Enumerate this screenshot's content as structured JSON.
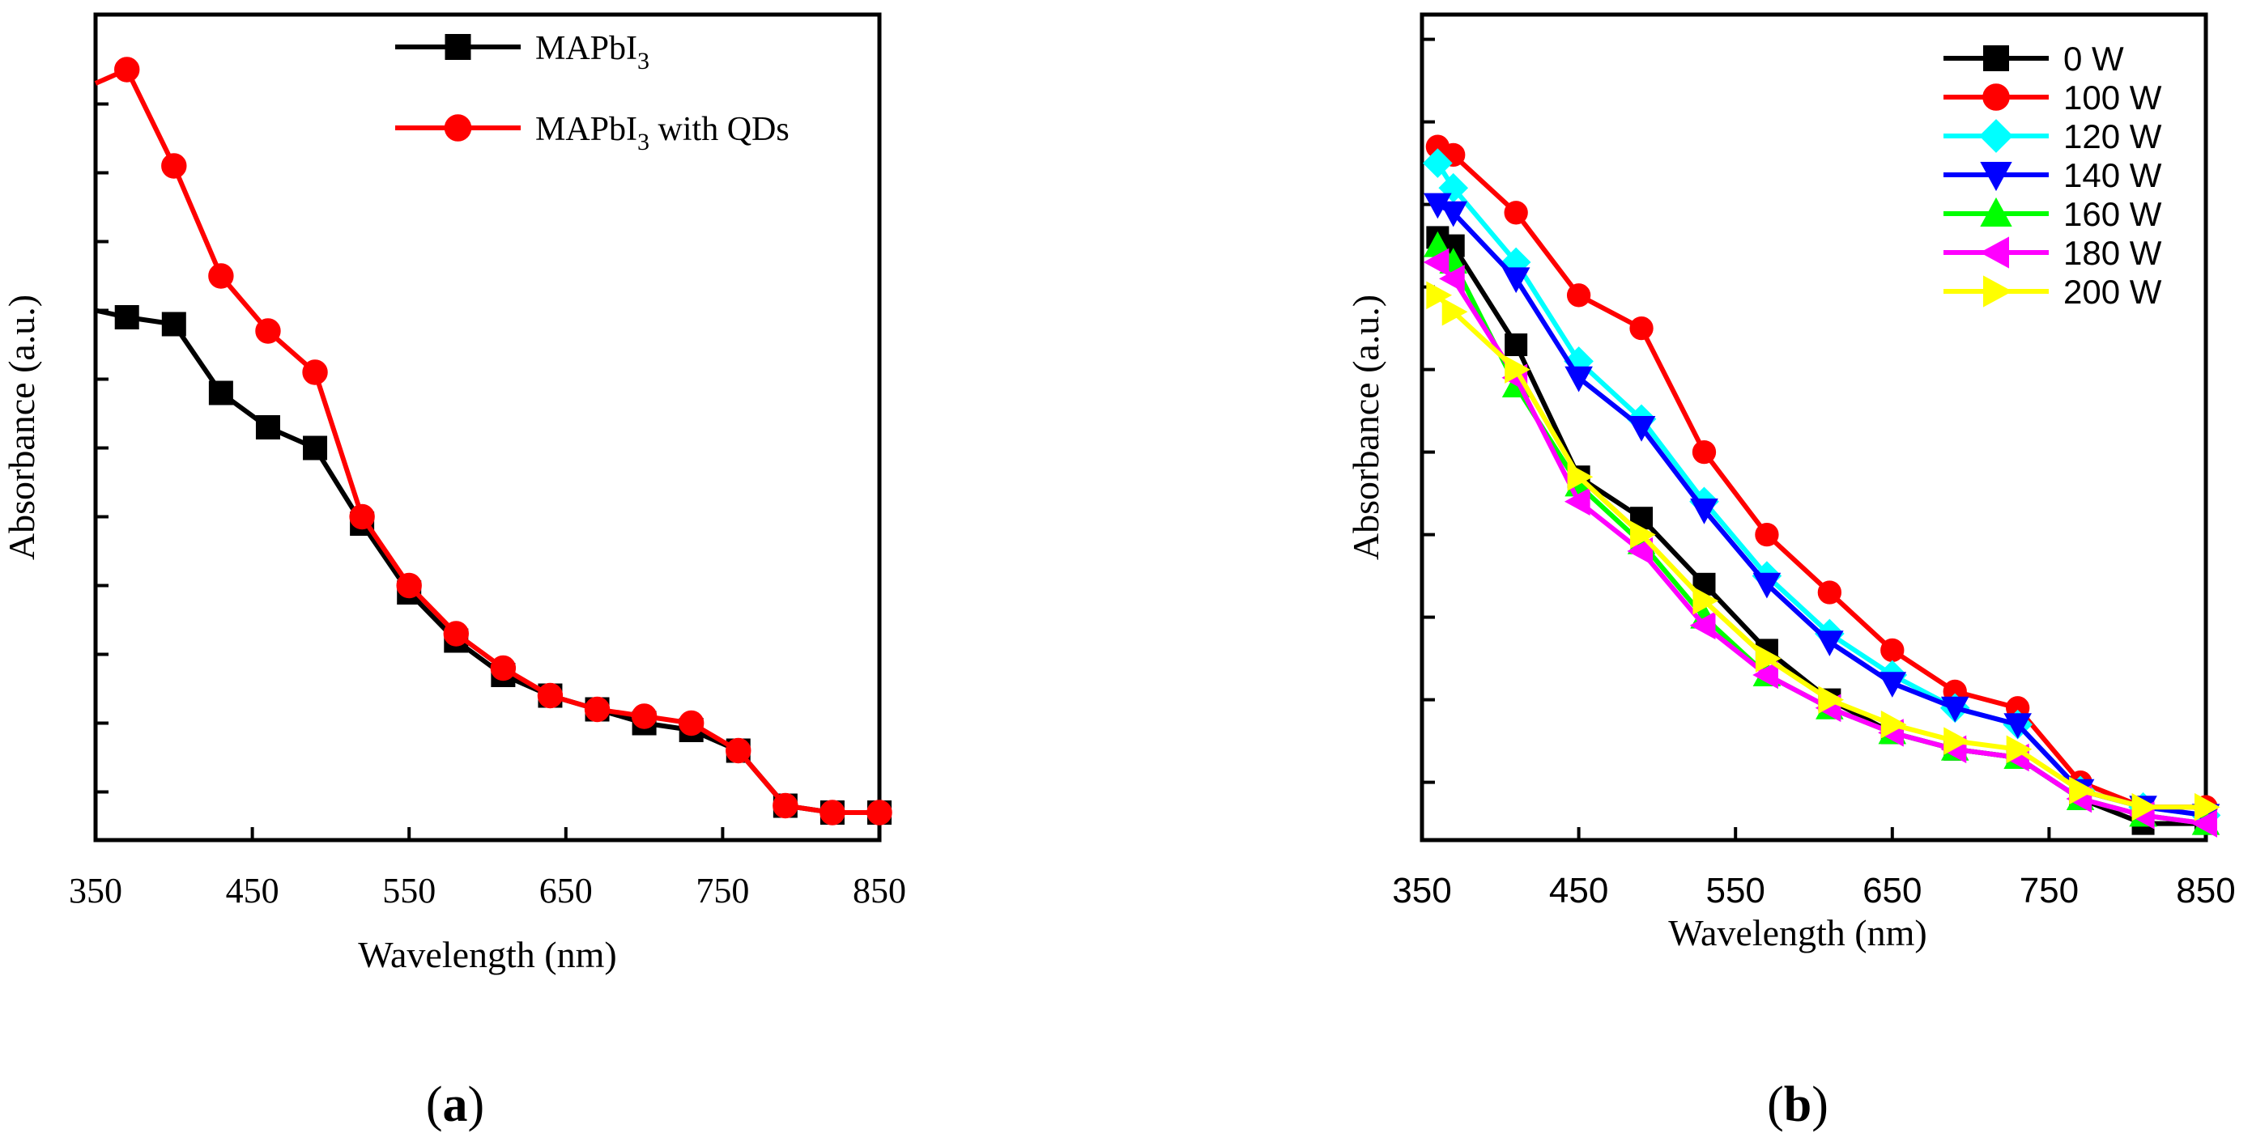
{
  "chart_data": [
    {
      "id": "a",
      "type": "line",
      "panel_label_prefix": "(",
      "panel_label_letter": "a",
      "panel_label_suffix": ")",
      "xlabel": "Wavelength (nm)",
      "ylabel": "Absorbance (a.u.)",
      "xlim": [
        350,
        850
      ],
      "ylim": [
        0,
        1.2
      ],
      "xticks": [
        350,
        450,
        550,
        650,
        750,
        850
      ],
      "xtick_labels": [
        "350",
        "450",
        "550",
        "650",
        "750",
        "850"
      ],
      "yticks": [
        0.07,
        0.17,
        0.27,
        0.37,
        0.47,
        0.57,
        0.67,
        0.77,
        0.87,
        0.97,
        1.07
      ],
      "series": [
        {
          "name": "MAPbI3",
          "legend_main": "MAPbI",
          "legend_sub": "3",
          "legend_rest": "",
          "color": "#000000",
          "marker": "square",
          "x": [
            350,
            370,
            400,
            430,
            460,
            490,
            520,
            550,
            580,
            610,
            640,
            670,
            700,
            730,
            760,
            790,
            820,
            850
          ],
          "y": [
            0.77,
            0.76,
            0.75,
            0.65,
            0.6,
            0.57,
            0.46,
            0.36,
            0.29,
            0.24,
            0.21,
            0.19,
            0.17,
            0.16,
            0.13,
            0.05,
            0.04,
            0.04
          ]
        },
        {
          "name": "MAPbI3 with QDs",
          "legend_main": "MAPbI",
          "legend_sub": "3",
          "legend_rest": " with QDs",
          "color": "#ff0000",
          "marker": "circle",
          "x": [
            350,
            370,
            400,
            430,
            460,
            490,
            520,
            550,
            580,
            610,
            640,
            670,
            700,
            730,
            760,
            790,
            820,
            850
          ],
          "y": [
            1.1,
            1.12,
            0.98,
            0.82,
            0.74,
            0.68,
            0.47,
            0.37,
            0.3,
            0.25,
            0.21,
            0.19,
            0.18,
            0.17,
            0.13,
            0.05,
            0.04,
            0.04
          ]
        }
      ]
    },
    {
      "id": "b",
      "type": "line",
      "panel_label_prefix": "(",
      "panel_label_letter": "b",
      "panel_label_suffix": ")",
      "xlabel": "Wavelength (nm)",
      "ylabel": "Absorbance (a.u.)",
      "xlim": [
        350,
        850
      ],
      "ylim": [
        0,
        1.0
      ],
      "xticks": [
        350,
        450,
        550,
        650,
        750,
        850
      ],
      "xtick_labels": [
        "350",
        "450",
        "550",
        "650",
        "750",
        "850"
      ],
      "yticks": [
        0.07,
        0.17,
        0.27,
        0.37,
        0.47,
        0.57,
        0.67,
        0.77,
        0.87,
        0.97
      ],
      "series": [
        {
          "name": "0 W",
          "color": "#000000",
          "marker": "square",
          "x": [
            360,
            370,
            410,
            450,
            490,
            530,
            570,
            610,
            650,
            690,
            730,
            770,
            810,
            850
          ],
          "y": [
            0.73,
            0.72,
            0.6,
            0.44,
            0.39,
            0.31,
            0.23,
            0.17,
            0.13,
            0.11,
            0.1,
            0.05,
            0.02,
            0.02
          ]
        },
        {
          "name": "100 W",
          "color": "#ff0000",
          "marker": "circle",
          "x": [
            360,
            370,
            410,
            450,
            490,
            530,
            570,
            610,
            650,
            690,
            730,
            770,
            810,
            850
          ],
          "y": [
            0.84,
            0.83,
            0.76,
            0.66,
            0.62,
            0.47,
            0.37,
            0.3,
            0.23,
            0.18,
            0.16,
            0.07,
            0.04,
            0.04
          ]
        },
        {
          "name": "120 W",
          "color": "#00ffff",
          "marker": "diamond",
          "x": [
            360,
            370,
            410,
            450,
            490,
            530,
            570,
            610,
            650,
            690,
            730,
            770,
            810,
            850
          ],
          "y": [
            0.82,
            0.79,
            0.7,
            0.58,
            0.51,
            0.41,
            0.32,
            0.25,
            0.2,
            0.16,
            0.14,
            0.06,
            0.04,
            0.03
          ]
        },
        {
          "name": "140 W",
          "color": "#0000ff",
          "marker": "tri-down",
          "x": [
            360,
            370,
            410,
            450,
            490,
            530,
            570,
            610,
            650,
            690,
            730,
            770,
            810,
            850
          ],
          "y": [
            0.77,
            0.76,
            0.68,
            0.56,
            0.5,
            0.4,
            0.31,
            0.24,
            0.19,
            0.16,
            0.14,
            0.06,
            0.04,
            0.03
          ]
        },
        {
          "name": "160 W",
          "color": "#00ff00",
          "marker": "tri-up",
          "x": [
            360,
            370,
            410,
            450,
            490,
            530,
            570,
            610,
            650,
            690,
            730,
            770,
            810,
            850
          ],
          "y": [
            0.72,
            0.7,
            0.55,
            0.43,
            0.36,
            0.27,
            0.2,
            0.16,
            0.13,
            0.11,
            0.1,
            0.05,
            0.03,
            0.02
          ]
        },
        {
          "name": "180 W",
          "color": "#ff00ff",
          "marker": "tri-left",
          "x": [
            360,
            370,
            410,
            450,
            490,
            530,
            570,
            610,
            650,
            690,
            730,
            770,
            810,
            850
          ],
          "y": [
            0.7,
            0.68,
            0.56,
            0.41,
            0.35,
            0.26,
            0.2,
            0.16,
            0.13,
            0.11,
            0.1,
            0.05,
            0.03,
            0.02
          ]
        },
        {
          "name": "200 W",
          "color": "#ffff00",
          "marker": "tri-right",
          "x": [
            360,
            370,
            410,
            450,
            490,
            530,
            570,
            610,
            650,
            690,
            730,
            770,
            810,
            850
          ],
          "y": [
            0.66,
            0.64,
            0.57,
            0.44,
            0.37,
            0.29,
            0.22,
            0.17,
            0.14,
            0.12,
            0.11,
            0.06,
            0.04,
            0.04
          ]
        }
      ]
    }
  ]
}
